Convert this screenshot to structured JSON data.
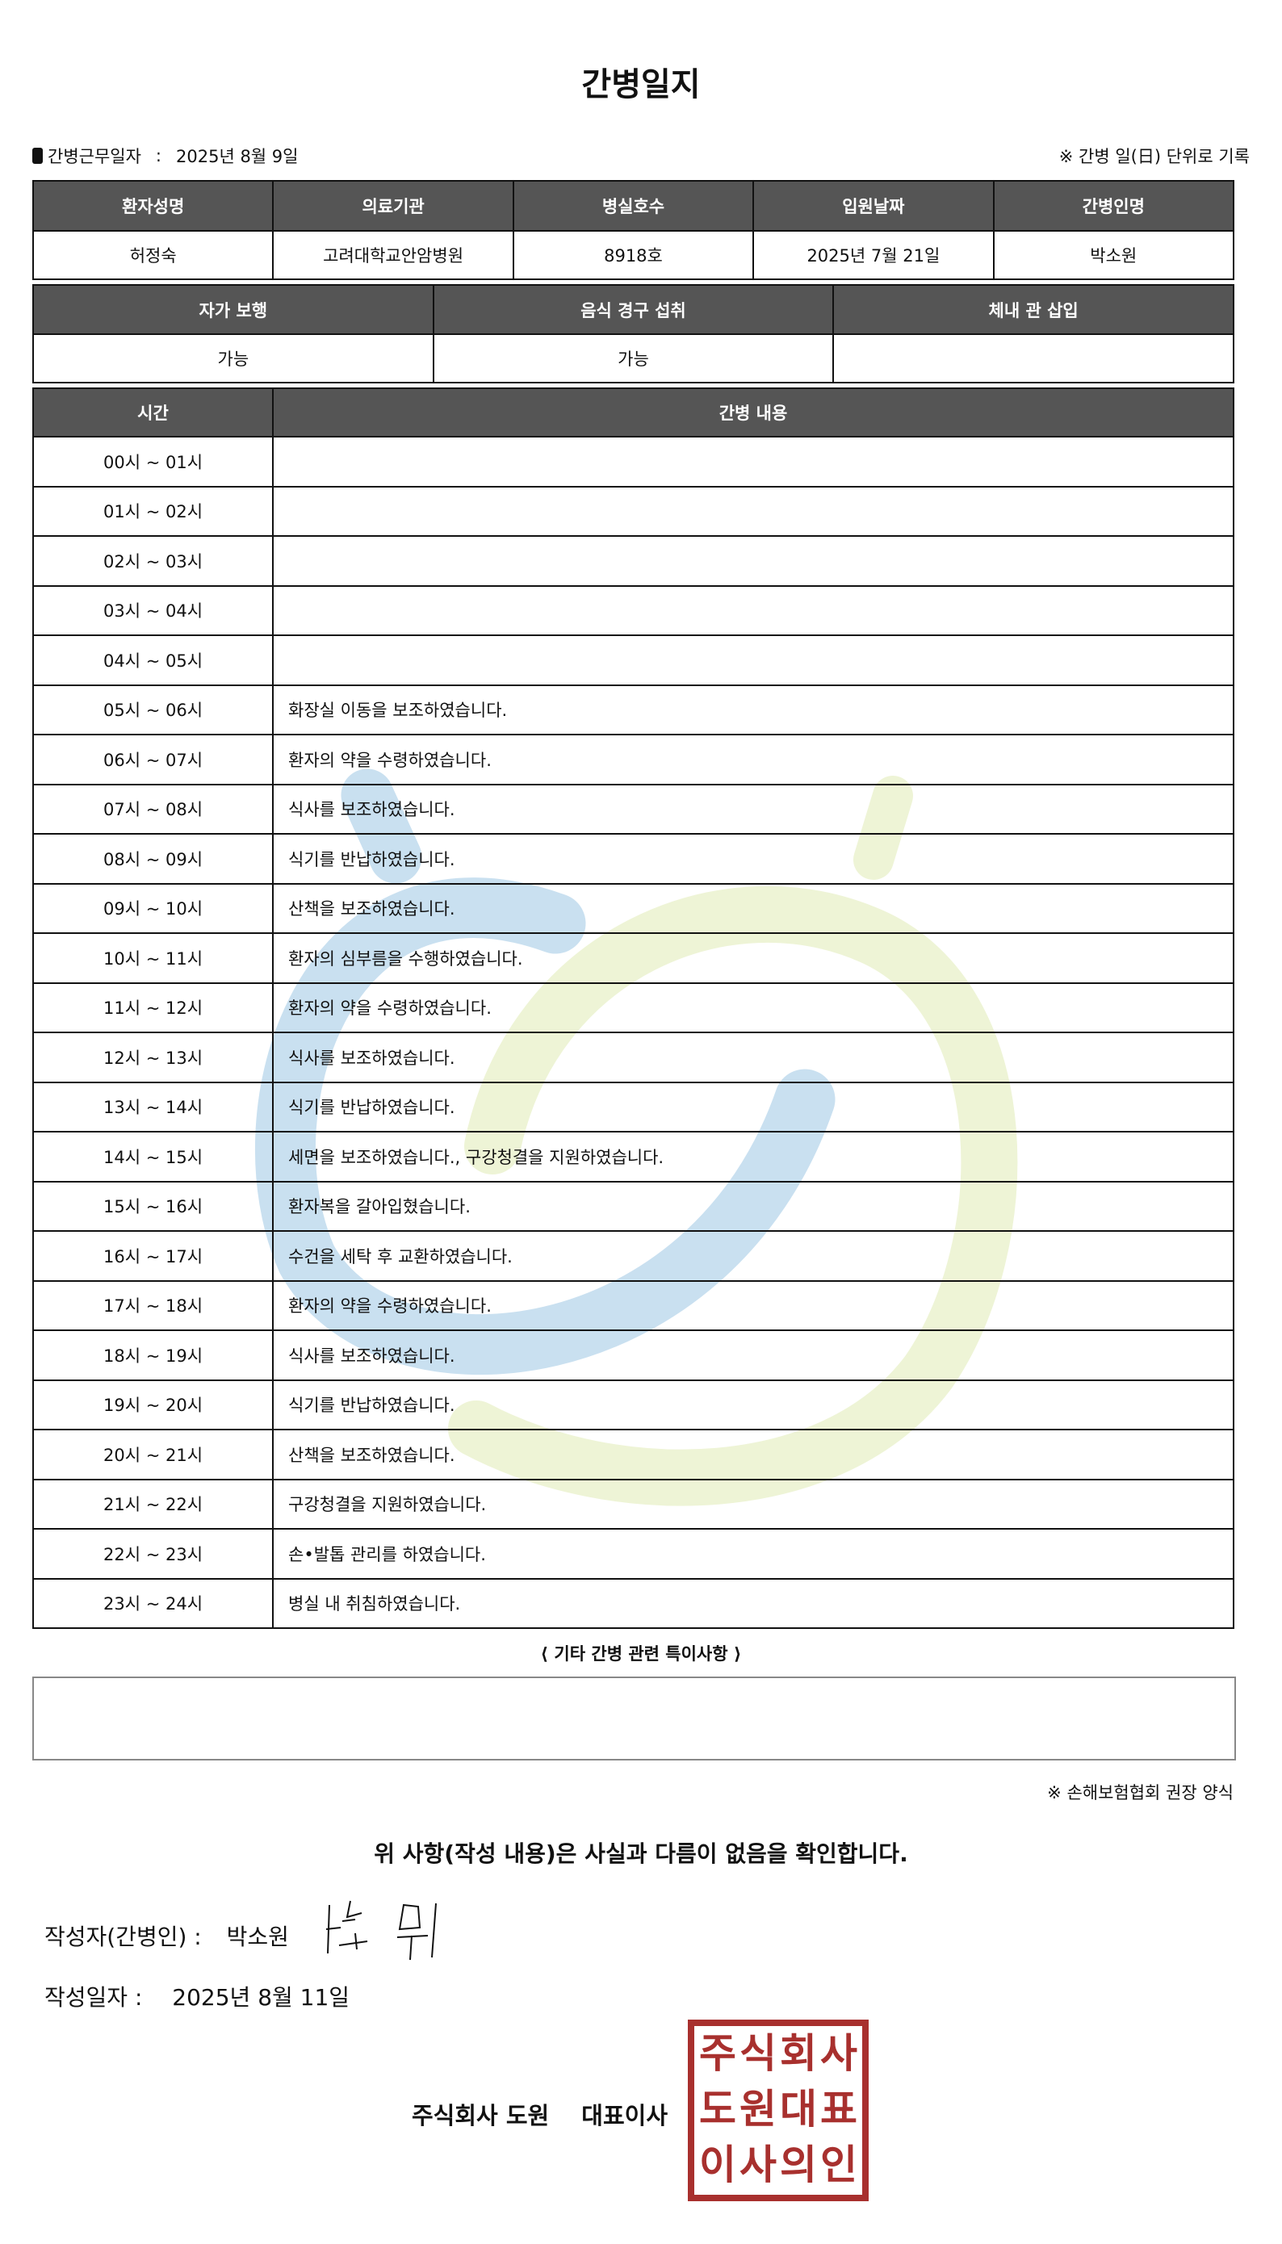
{
  "title": "간병일지",
  "duty_date_label": "간병근무일자",
  "duty_date_sep": ":",
  "duty_date_value": "2025년 8월 9일",
  "unit_note": "※ 간병 일(日) 단위로 기록",
  "patient_table": {
    "headers": [
      "환자성명",
      "의료기관",
      "병실호수",
      "입원날짜",
      "간병인명"
    ],
    "values": [
      "허정숙",
      "고려대학교안암병원",
      "8918호",
      "2025년 7월 21일",
      "박소원"
    ]
  },
  "status_table": {
    "headers": [
      "자가 보행",
      "음식 경구 섭취",
      "체내 관 삽입"
    ],
    "values": [
      "가능",
      "가능",
      ""
    ]
  },
  "log_table": {
    "headers": [
      "시간",
      "간병 내용"
    ],
    "rows": [
      {
        "time": "00시 ~ 01시",
        "content": ""
      },
      {
        "time": "01시 ~ 02시",
        "content": ""
      },
      {
        "time": "02시 ~ 03시",
        "content": ""
      },
      {
        "time": "03시 ~ 04시",
        "content": ""
      },
      {
        "time": "04시 ~ 05시",
        "content": ""
      },
      {
        "time": "05시 ~ 06시",
        "content": "화장실 이동을 보조하였습니다."
      },
      {
        "time": "06시 ~ 07시",
        "content": "환자의 약을 수령하였습니다."
      },
      {
        "time": "07시 ~ 08시",
        "content": "식사를 보조하였습니다."
      },
      {
        "time": "08시 ~ 09시",
        "content": "식기를 반납하였습니다."
      },
      {
        "time": "09시 ~ 10시",
        "content": "산책을 보조하였습니다."
      },
      {
        "time": "10시 ~ 11시",
        "content": "환자의 심부름을 수행하였습니다."
      },
      {
        "time": "11시 ~ 12시",
        "content": "환자의 약을 수령하였습니다."
      },
      {
        "time": "12시 ~ 13시",
        "content": "식사를 보조하였습니다."
      },
      {
        "time": "13시 ~ 14시",
        "content": "식기를 반납하였습니다."
      },
      {
        "time": "14시 ~ 15시",
        "content": "세면을 보조하였습니다., 구강청결을 지원하였습니다."
      },
      {
        "time": "15시 ~ 16시",
        "content": "환자복을 갈아입혔습니다."
      },
      {
        "time": "16시 ~ 17시",
        "content": "수건을 세탁 후 교환하였습니다."
      },
      {
        "time": "17시 ~ 18시",
        "content": "환자의 약을 수령하였습니다."
      },
      {
        "time": "18시 ~ 19시",
        "content": "식사를 보조하였습니다."
      },
      {
        "time": "19시 ~ 20시",
        "content": "식기를 반납하였습니다."
      },
      {
        "time": "20시 ~ 21시",
        "content": "산책을 보조하였습니다."
      },
      {
        "time": "21시 ~ 22시",
        "content": "구강청결을 지원하였습니다."
      },
      {
        "time": "22시 ~ 23시",
        "content": "손•발톱 관리를 하였습니다."
      },
      {
        "time": "23시 ~ 24시",
        "content": "병실 내 취침하였습니다."
      }
    ]
  },
  "special_notes_label": "⟨ 기타 간병 관련 특이사항 ⟩",
  "special_notes_value": "",
  "form_note": "※ 손해보험협회 권장 양식",
  "confirmation": "위 사항(작성 내용)은 사실과 다름이 없음을 확인합니다.",
  "writer_label": "작성자(간병인) :",
  "writer_name": "박소원",
  "written_date_label": "작성일자 :",
  "written_date_value": "2025년 8월 11일",
  "company": "주식회사 도원",
  "ceo_title": "대표이사",
  "seal_text": [
    "주",
    "식",
    "회",
    "사",
    "도",
    "원",
    "대",
    "표",
    "이",
    "사",
    "의",
    "인"
  ],
  "colors": {
    "header_bg": "#555555",
    "seal": "#a8302e",
    "watermark_blue": "#c9e0f0",
    "watermark_green": "#eef4d6"
  }
}
